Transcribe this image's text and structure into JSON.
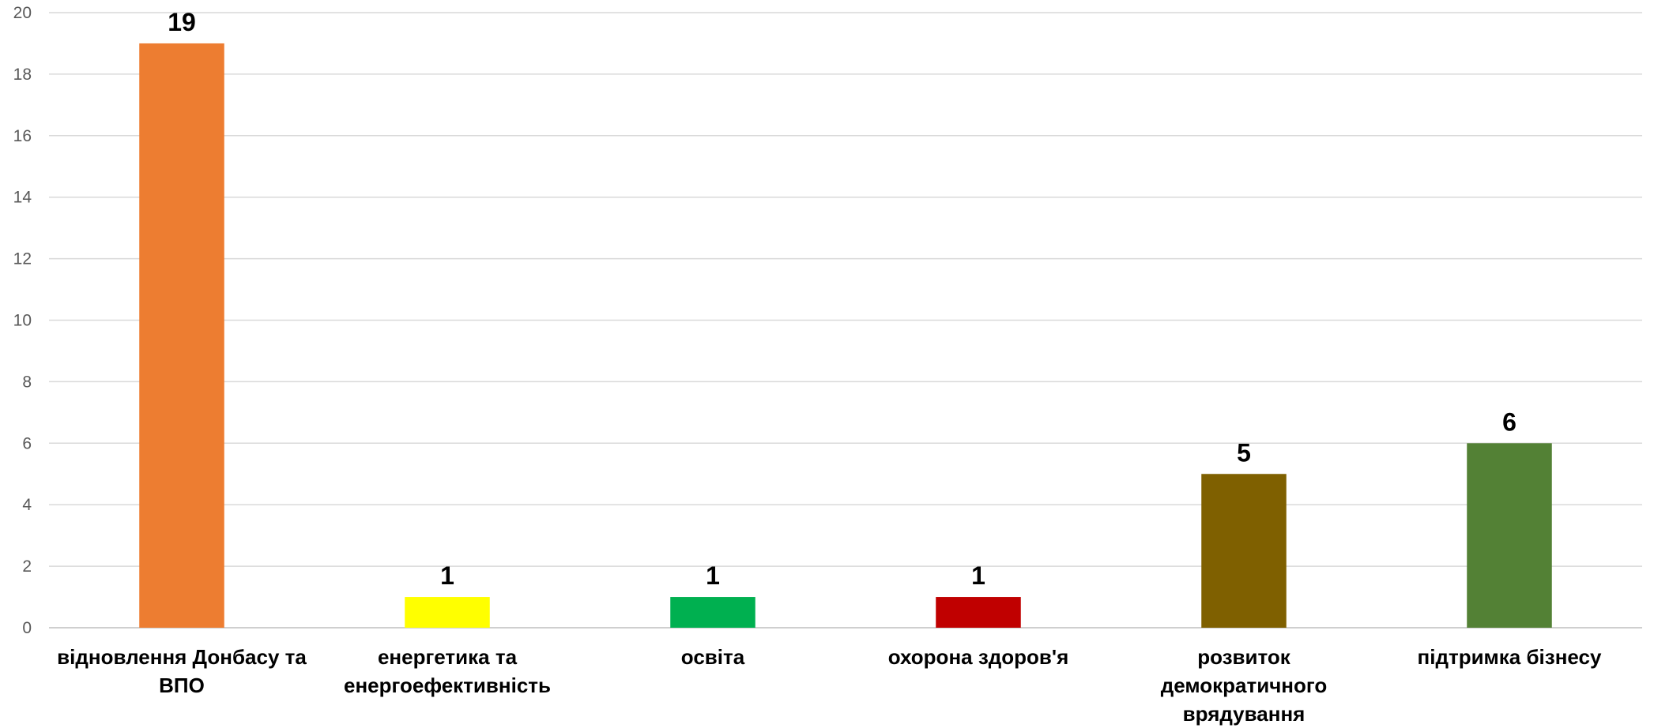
{
  "chart_data": {
    "type": "bar",
    "title": "",
    "xlabel": "",
    "ylabel": "",
    "ylim": [
      0,
      20
    ],
    "yticks": [
      0,
      2,
      4,
      6,
      8,
      10,
      12,
      14,
      16,
      18,
      20
    ],
    "grid": true,
    "legend": "none",
    "categories": [
      [
        "відновлення Донбасу та",
        "ВПО"
      ],
      [
        "енергетика та",
        "енергоефективність"
      ],
      [
        "освіта"
      ],
      [
        "охорона здоров'я"
      ],
      [
        "розвиток",
        "демократичного",
        "врядування"
      ],
      [
        "підтримка бізнесу"
      ]
    ],
    "values": [
      19,
      1,
      1,
      1,
      5,
      6
    ],
    "data_labels": [
      "19",
      "1",
      "1",
      "1",
      "5",
      "6"
    ],
    "colors": [
      "#ED7D31",
      "#FFFF00",
      "#00B050",
      "#C00000",
      "#7F6000",
      "#538135"
    ]
  }
}
